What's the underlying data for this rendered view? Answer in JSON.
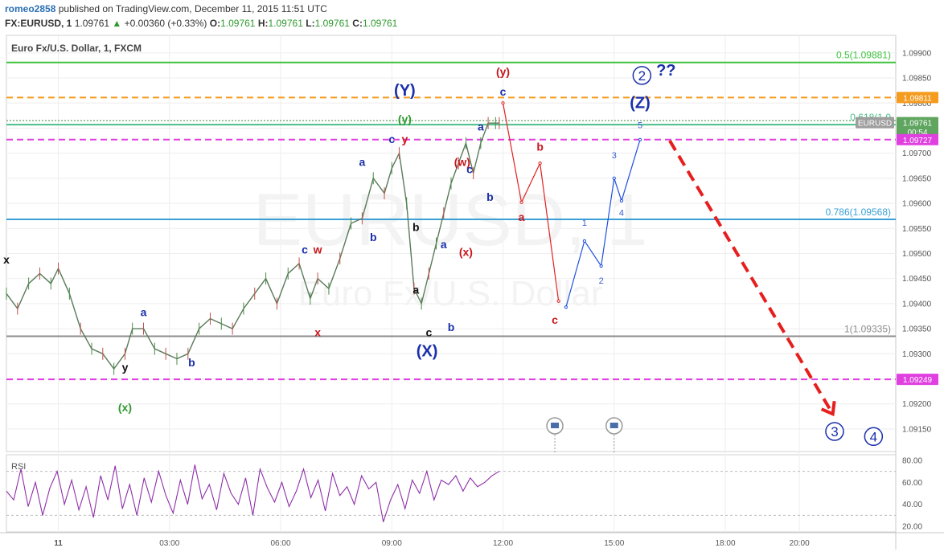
{
  "header": {
    "user": "romeo2858",
    "published": "published on TradingView.com, December 11, 2015 11:51 UTC",
    "symbol": "FX:EURUSD, 1",
    "last": "1.09761",
    "change": "+0.00360 (+0.33%)",
    "o_label": "O:",
    "o": "1.09761",
    "h_label": "H:",
    "h": "1.09761",
    "l_label": "L:",
    "l": "1.09761",
    "c_label": "C:",
    "c": "1.09761"
  },
  "chart_data": {
    "type": "line",
    "title": "Euro Fx/U.S. Dollar, 1, FXCM",
    "watermark": "EURUSD, 1",
    "watermark_sub": "Euro Fx/U.S. Dollar",
    "price_axis": {
      "ylim": [
        1.09105,
        1.09935
      ],
      "ticks": [
        "1.09900",
        "1.09850",
        "1.09800",
        "1.09750",
        "1.09700",
        "1.09650",
        "1.09600",
        "1.09550",
        "1.09500",
        "1.09450",
        "1.09400",
        "1.09350",
        "1.09300",
        "1.09250",
        "1.09200",
        "1.09150"
      ],
      "tick_values": [
        1.099,
        1.0985,
        1.098,
        1.0975,
        1.097,
        1.0965,
        1.096,
        1.0955,
        1.095,
        1.0945,
        1.094,
        1.0935,
        1.093,
        1.0925,
        1.092,
        1.0915
      ]
    },
    "time_axis": {
      "labels": [
        "11",
        "03:00",
        "06:00",
        "09:00",
        "12:00",
        "15:00",
        "18:00",
        "20:00"
      ],
      "hours": [
        0,
        3,
        6,
        9,
        12,
        15,
        18,
        20
      ],
      "xlim_hours": [
        -1.4,
        22.6
      ]
    },
    "price_badges": [
      {
        "label": "1.09811",
        "value": 1.09811,
        "color": "#f59b1e"
      },
      {
        "label": "EURUSD",
        "value": 1.09761,
        "color": "#9e9e9e"
      },
      {
        "label": "1.09761",
        "value": 1.09761,
        "color": "#5fa55f"
      },
      {
        "label": "00:54",
        "value": 1.09743,
        "color": "#5fa55f"
      },
      {
        "label": "1.09727",
        "value": 1.09727,
        "color": "#e040e0"
      },
      {
        "label": "1.09249",
        "value": 1.09249,
        "color": "#e040e0"
      }
    ],
    "horizontal_lines": [
      {
        "value": 1.09881,
        "color": "#3ec33e",
        "style": "solid",
        "label": "0.5(1.09881)"
      },
      {
        "value": 1.09811,
        "color": "#f59b1e",
        "style": "dashed",
        "label": ""
      },
      {
        "value": 1.09765,
        "color": "#7ab07a",
        "style": "dotted",
        "label": ""
      },
      {
        "value": 1.09757,
        "color": "#4bbf8a",
        "style": "solid",
        "label": "0.618(1.0"
      },
      {
        "value": 1.09727,
        "color": "#e040e0",
        "style": "dashed",
        "label": ""
      },
      {
        "value": 1.09568,
        "color": "#3aa0d6",
        "style": "solid",
        "label": "0.786(1.09568)"
      },
      {
        "value": 1.09335,
        "color": "#8c8c8c",
        "style": "solid",
        "label": "1(1.09335)"
      },
      {
        "value": 1.09249,
        "color": "#e040e0",
        "style": "dashed",
        "label": ""
      }
    ],
    "price_series": {
      "name": "",
      "hours": [
        -1.4,
        -1.1,
        -0.8,
        -0.5,
        -0.2,
        0.0,
        0.3,
        0.6,
        0.9,
        1.2,
        1.5,
        1.8,
        2.0,
        2.3,
        2.6,
        2.9,
        3.2,
        3.5,
        3.8,
        4.1,
        4.4,
        4.7,
        5.0,
        5.3,
        5.6,
        5.9,
        6.2,
        6.5,
        6.8,
        7.0,
        7.3,
        7.6,
        7.9,
        8.2,
        8.5,
        8.8,
        9.0,
        9.2,
        9.4,
        9.6,
        9.8,
        10.0,
        10.2,
        10.4,
        10.6,
        10.8,
        11.0,
        11.2,
        11.4,
        11.6,
        11.8,
        11.9
      ],
      "values": [
        1.0942,
        1.0939,
        1.0944,
        1.0946,
        1.0944,
        1.0947,
        1.0942,
        1.0935,
        1.0931,
        1.093,
        1.0927,
        1.093,
        1.0935,
        1.0935,
        1.0931,
        1.093,
        1.0929,
        1.093,
        1.0935,
        1.0937,
        1.0936,
        1.0935,
        1.0939,
        1.0942,
        1.0945,
        1.094,
        1.0946,
        1.0948,
        1.0941,
        1.0945,
        1.0943,
        1.0949,
        1.0956,
        1.0957,
        1.0965,
        1.0962,
        1.0967,
        1.097,
        1.096,
        1.0943,
        1.094,
        1.0946,
        1.0952,
        1.0958,
        1.0964,
        1.0968,
        1.0972,
        1.0966,
        1.0972,
        1.0976,
        1.0976,
        1.0976
      ]
    },
    "projection_red": {
      "hours": [
        12.0,
        12.5,
        13.0,
        13.5
      ],
      "values": [
        1.098,
        1.09602,
        1.0968,
        1.09405
      ]
    },
    "projection_blue": {
      "hours": [
        13.7,
        14.2,
        14.65,
        15.0,
        15.2,
        15.7
      ],
      "values": [
        1.09393,
        1.09525,
        1.09475,
        1.0965,
        1.09605,
        1.09727
      ]
    },
    "projection_dash": {
      "hours": [
        16.5,
        20.9
      ],
      "values": [
        1.09725,
        1.0918
      ]
    },
    "wave_labels": [
      {
        "text": "x",
        "h": -1.4,
        "v": 1.0948,
        "color": "#111"
      },
      {
        "text": "y",
        "h": 1.8,
        "v": 1.09265,
        "color": "#111"
      },
      {
        "text": "(x)",
        "h": 1.8,
        "v": 1.09185,
        "color": "#2e9a2e"
      },
      {
        "text": "a",
        "h": 2.3,
        "v": 1.09375,
        "color": "#1a2faa"
      },
      {
        "text": "b",
        "h": 3.6,
        "v": 1.09275,
        "color": "#1a2faa"
      },
      {
        "text": "c",
        "h": 6.65,
        "v": 1.095,
        "color": "#1a2faa"
      },
      {
        "text": "w",
        "h": 7.0,
        "v": 1.095,
        "color": "#c8161d"
      },
      {
        "text": "x",
        "h": 7.0,
        "v": 1.09335,
        "color": "#c8161d"
      },
      {
        "text": "a",
        "h": 8.2,
        "v": 1.09675,
        "color": "#1a2faa"
      },
      {
        "text": "b",
        "h": 8.5,
        "v": 1.09525,
        "color": "#1a2faa"
      },
      {
        "text": "c",
        "h": 9.0,
        "v": 1.0972,
        "color": "#1a2faa"
      },
      {
        "text": "y",
        "h": 9.35,
        "v": 1.0972,
        "color": "#c8161d"
      },
      {
        "text": "(y)",
        "h": 9.35,
        "v": 1.0976,
        "color": "#2e9a2e"
      },
      {
        "text": "(Y)",
        "h": 9.35,
        "v": 1.09815,
        "color": "#1a2faa"
      },
      {
        "text": "b",
        "h": 9.65,
        "v": 1.09545,
        "color": "#111"
      },
      {
        "text": "a",
        "h": 9.65,
        "v": 1.0942,
        "color": "#111"
      },
      {
        "text": "c",
        "h": 10.0,
        "v": 1.09335,
        "color": "#111"
      },
      {
        "text": "(X)",
        "h": 9.95,
        "v": 1.09295,
        "color": "#1a2faa"
      },
      {
        "text": "b",
        "h": 10.6,
        "v": 1.09345,
        "color": "#1a2faa"
      },
      {
        "text": "a",
        "h": 10.4,
        "v": 1.0951,
        "color": "#1a2faa"
      },
      {
        "text": "(x)",
        "h": 11.0,
        "v": 1.09495,
        "color": "#c8161d"
      },
      {
        "text": "(w)",
        "h": 10.9,
        "v": 1.09675,
        "color": "#c8161d"
      },
      {
        "text": "c",
        "h": 11.1,
        "v": 1.0966,
        "color": "#1a2faa"
      },
      {
        "text": "a",
        "h": 11.4,
        "v": 1.09745,
        "color": "#1a2faa"
      },
      {
        "text": "b",
        "h": 11.65,
        "v": 1.09605,
        "color": "#1a2faa"
      },
      {
        "text": "c",
        "h": 12.0,
        "v": 1.09815,
        "color": "#1a2faa"
      },
      {
        "text": "(y)",
        "h": 12.0,
        "v": 1.09855,
        "color": "#c8161d"
      },
      {
        "text": "a",
        "h": 12.5,
        "v": 1.09565,
        "color": "#c8161d"
      },
      {
        "text": "b",
        "h": 13.0,
        "v": 1.09705,
        "color": "#c8161d"
      },
      {
        "text": "c",
        "h": 13.4,
        "v": 1.0936,
        "color": "#c8161d"
      },
      {
        "text": "1",
        "h": 14.2,
        "v": 1.09555,
        "color": "#3a5fd0"
      },
      {
        "text": "2",
        "h": 14.65,
        "v": 1.0944,
        "color": "#3a5fd0"
      },
      {
        "text": "3",
        "h": 15.0,
        "v": 1.0969,
        "color": "#3a5fd0"
      },
      {
        "text": "4",
        "h": 15.2,
        "v": 1.09575,
        "color": "#3a5fd0"
      },
      {
        "text": "5",
        "h": 15.7,
        "v": 1.0975,
        "color": "#3a5fd0"
      },
      {
        "text": "(Z)",
        "h": 15.7,
        "v": 1.0979,
        "color": "#1a2faa"
      },
      {
        "text": "??",
        "h": 16.4,
        "v": 1.09855,
        "color": "#1a2faa"
      }
    ],
    "circled_labels": [
      {
        "text": "2",
        "h": 15.75,
        "v": 1.09855
      },
      {
        "text": "3",
        "h": 20.95,
        "v": 1.09145
      },
      {
        "text": "4",
        "h": 22.0,
        "v": 1.09135
      }
    ],
    "events": [
      13.4,
      15.0
    ],
    "rsi": {
      "label": "RSI",
      "ticks": [
        "80.00",
        "60.00",
        "40.00",
        "20.00"
      ],
      "tick_values": [
        80,
        60,
        40,
        20
      ],
      "ylim": [
        15,
        85
      ],
      "values": [
        52,
        44,
        72,
        38,
        60,
        30,
        55,
        70,
        40,
        62,
        35,
        56,
        28,
        66,
        44,
        75,
        36,
        58,
        30,
        64,
        42,
        70,
        48,
        32,
        62,
        40,
        76,
        45,
        58,
        35,
        68,
        50,
        40,
        64,
        30,
        72,
        55,
        42,
        60,
        38,
        52,
        72,
        46,
        62,
        34,
        68,
        48,
        56,
        40,
        66,
        54,
        60,
        24,
        44,
        58,
        36,
        62,
        50,
        70,
        44,
        62,
        58,
        66,
        52,
        64,
        56,
        60,
        66,
        70
      ]
    }
  }
}
